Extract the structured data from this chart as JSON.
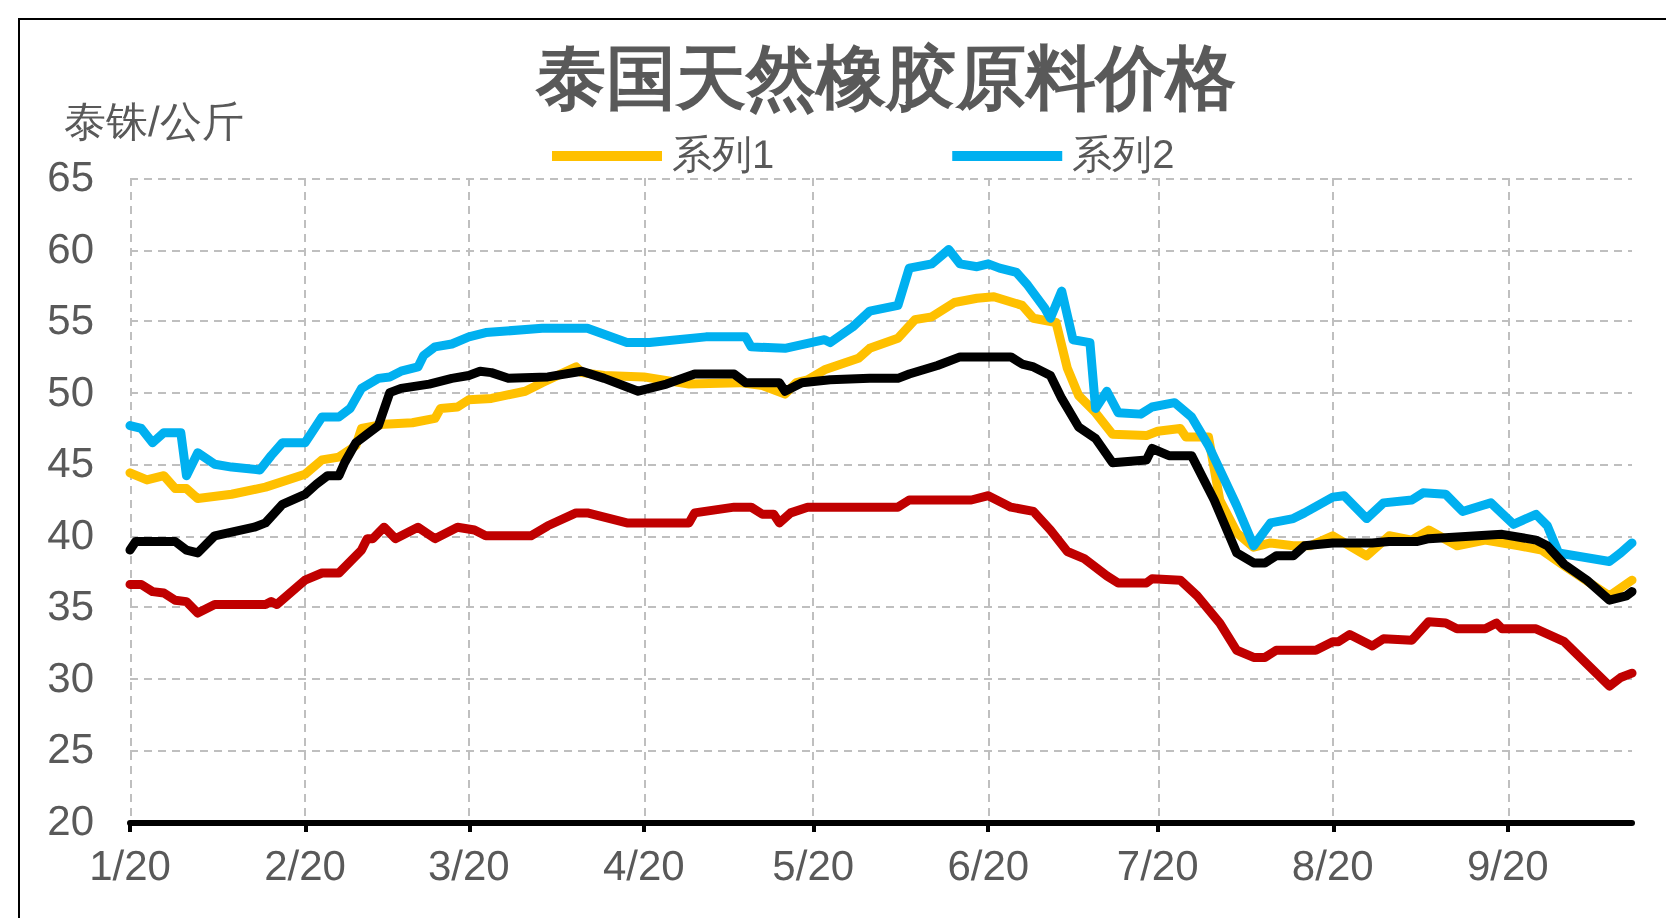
{
  "chart_data": {
    "type": "line",
    "title": "泰国天然橡胶原料价格",
    "ylabel": "泰铢/公斤",
    "xlim": [
      "2020-01-01",
      "2020-09-23"
    ],
    "xticks": [
      {
        "value": "2020-01-01",
        "label": "1/20"
      },
      {
        "value": "2020-02-01",
        "label": "2/20"
      },
      {
        "value": "2020-03-01",
        "label": "3/20"
      },
      {
        "value": "2020-04-01",
        "label": "4/20"
      },
      {
        "value": "2020-05-01",
        "label": "5/20"
      },
      {
        "value": "2020-06-01",
        "label": "6/20"
      },
      {
        "value": "2020-07-01",
        "label": "7/20"
      },
      {
        "value": "2020-08-01",
        "label": "8/20"
      },
      {
        "value": "2020-09-01",
        "label": "9/20"
      }
    ],
    "ylim": [
      20,
      65
    ],
    "yticks": [
      20,
      25,
      30,
      35,
      40,
      45,
      50,
      55,
      60,
      65
    ],
    "grid": true,
    "legend": "top",
    "marker": "none",
    "line_style": "solid",
    "series": [
      {
        "name": "系列1",
        "color": "#ffc000",
        "x": [
          "2020-01-01",
          "2020-01-04",
          "2020-01-07",
          "2020-01-09",
          "2020-01-11",
          "2020-01-13",
          "2020-01-19",
          "2020-01-25",
          "2020-02-01",
          "2020-02-04",
          "2020-02-07",
          "2020-02-10",
          "2020-02-11",
          "2020-02-15",
          "2020-02-20",
          "2020-02-24",
          "2020-02-25",
          "2020-02-28",
          "2020-03-01",
          "2020-03-05",
          "2020-03-11",
          "2020-03-14",
          "2020-03-20",
          "2020-03-21",
          "2020-03-25",
          "2020-04-01",
          "2020-04-09",
          "2020-04-18",
          "2020-04-22",
          "2020-04-26",
          "2020-04-28",
          "2020-04-30",
          "2020-05-03",
          "2020-05-09",
          "2020-05-11",
          "2020-05-16",
          "2020-05-19",
          "2020-05-22",
          "2020-05-26",
          "2020-05-30",
          "2020-06-02",
          "2020-06-07",
          "2020-06-09",
          "2020-06-13",
          "2020-06-15",
          "2020-06-17",
          "2020-06-20",
          "2020-06-23",
          "2020-06-29",
          "2020-07-01",
          "2020-07-05",
          "2020-07-06",
          "2020-07-10",
          "2020-07-12",
          "2020-07-15",
          "2020-07-18",
          "2020-07-21",
          "2020-07-25",
          "2020-07-28",
          "2020-08-01",
          "2020-08-07",
          "2020-08-11",
          "2020-08-15",
          "2020-08-18",
          "2020-08-23",
          "2020-08-28",
          "2020-09-03",
          "2020-09-07",
          "2020-09-11",
          "2020-09-19",
          "2020-09-23"
        ],
        "values": [
          44.4,
          43.9,
          44.2,
          43.3,
          43.3,
          42.6,
          42.9,
          43.4,
          44.3,
          45.3,
          45.5,
          46.3,
          47.5,
          47.8,
          47.9,
          48.2,
          48.9,
          49.0,
          49.5,
          49.6,
          50.1,
          50.7,
          51.8,
          51.4,
          51.2,
          51.1,
          50.6,
          50.7,
          50.5,
          49.9,
          50.7,
          50.9,
          51.6,
          52.4,
          53.1,
          53.8,
          55.1,
          55.3,
          56.3,
          56.6,
          56.7,
          56.1,
          55.2,
          54.9,
          51.7,
          49.8,
          48.6,
          47.1,
          47.0,
          47.3,
          47.5,
          46.9,
          46.9,
          42.5,
          40.2,
          39.2,
          39.5,
          39.3,
          39.3,
          40.0,
          38.6,
          40.0,
          39.7,
          40.4,
          39.3,
          39.7,
          39.3,
          39.0,
          37.9,
          35.8,
          36.9
        ]
      },
      {
        "name": "系列2",
        "color": "#00b0f0",
        "x": [
          "2020-01-01",
          "2020-01-03",
          "2020-01-05",
          "2020-01-07",
          "2020-01-10",
          "2020-01-11",
          "2020-01-13",
          "2020-01-16",
          "2020-01-19",
          "2020-01-24",
          "2020-01-26",
          "2020-01-28",
          "2020-02-01",
          "2020-02-02",
          "2020-02-04",
          "2020-02-07",
          "2020-02-09",
          "2020-02-11",
          "2020-02-14",
          "2020-02-16",
          "2020-02-18",
          "2020-02-21",
          "2020-02-22",
          "2020-02-24",
          "2020-02-27",
          "2020-03-01",
          "2020-03-04",
          "2020-03-14",
          "2020-03-22",
          "2020-03-29",
          "2020-04-02",
          "2020-04-12",
          "2020-04-19",
          "2020-04-20",
          "2020-04-26",
          "2020-05-03",
          "2020-05-04",
          "2020-05-08",
          "2020-05-11",
          "2020-05-16",
          "2020-05-18",
          "2020-05-22",
          "2020-05-25",
          "2020-05-27",
          "2020-05-30",
          "2020-06-01",
          "2020-06-03",
          "2020-06-06",
          "2020-06-08",
          "2020-06-11",
          "2020-06-12",
          "2020-06-14",
          "2020-06-16",
          "2020-06-19",
          "2020-06-20",
          "2020-06-22",
          "2020-06-24",
          "2020-06-28",
          "2020-06-30",
          "2020-07-04",
          "2020-07-07",
          "2020-07-10",
          "2020-07-15",
          "2020-07-18",
          "2020-07-21",
          "2020-07-25",
          "2020-07-27",
          "2020-08-01",
          "2020-08-03",
          "2020-08-07",
          "2020-08-10",
          "2020-08-15",
          "2020-08-17",
          "2020-08-21",
          "2020-08-24",
          "2020-08-29",
          "2020-09-02",
          "2020-09-06",
          "2020-09-08",
          "2020-09-10",
          "2020-09-19",
          "2020-09-21",
          "2020-09-23"
        ],
        "values": [
          47.7,
          47.5,
          46.5,
          47.2,
          47.2,
          44.2,
          45.8,
          45.0,
          44.8,
          44.6,
          45.6,
          46.5,
          46.5,
          47.1,
          48.3,
          48.3,
          48.9,
          50.3,
          51.0,
          51.1,
          51.5,
          51.8,
          52.6,
          53.2,
          53.4,
          53.9,
          54.2,
          54.5,
          54.5,
          53.5,
          53.5,
          53.9,
          53.9,
          53.2,
          53.1,
          53.7,
          53.5,
          54.6,
          55.7,
          56.1,
          58.7,
          59.0,
          60.0,
          59.0,
          58.8,
          59.0,
          58.7,
          58.4,
          57.5,
          55.9,
          55.2,
          57.1,
          53.7,
          53.5,
          48.9,
          50.1,
          48.6,
          48.5,
          49.0,
          49.3,
          48.3,
          46.3,
          42.1,
          39.3,
          40.9,
          41.2,
          41.6,
          42.7,
          42.8,
          41.2,
          42.3,
          42.5,
          43.0,
          42.9,
          41.7,
          42.3,
          40.8,
          41.5,
          40.7,
          38.8,
          38.2,
          38.8,
          39.5
        ]
      },
      {
        "color": "#c00000",
        "x": [
          "2020-01-01",
          "2020-01-03",
          "2020-01-05",
          "2020-01-07",
          "2020-01-09",
          "2020-01-11",
          "2020-01-13",
          "2020-01-16",
          "2020-01-25",
          "2020-01-26",
          "2020-01-27",
          "2020-02-01",
          "2020-02-04",
          "2020-02-07",
          "2020-02-11",
          "2020-02-12",
          "2020-02-13",
          "2020-02-15",
          "2020-02-17",
          "2020-02-21",
          "2020-02-24",
          "2020-02-28",
          "2020-03-02",
          "2020-03-04",
          "2020-03-12",
          "2020-03-15",
          "2020-03-20",
          "2020-03-22",
          "2020-03-29",
          "2020-04-09",
          "2020-04-10",
          "2020-04-17",
          "2020-04-20",
          "2020-04-22",
          "2020-04-24",
          "2020-04-25",
          "2020-04-27",
          "2020-04-30",
          "2020-05-16",
          "2020-05-18",
          "2020-05-29",
          "2020-06-01",
          "2020-06-05",
          "2020-06-09",
          "2020-06-12",
          "2020-06-15",
          "2020-06-18",
          "2020-06-22",
          "2020-06-24",
          "2020-06-29",
          "2020-06-30",
          "2020-07-05",
          "2020-07-08",
          "2020-07-12",
          "2020-07-15",
          "2020-07-18",
          "2020-07-20",
          "2020-07-22",
          "2020-07-29",
          "2020-08-01",
          "2020-08-02",
          "2020-08-04",
          "2020-08-08",
          "2020-08-10",
          "2020-08-15",
          "2020-08-18",
          "2020-08-21",
          "2020-08-23",
          "2020-08-28",
          "2020-08-30",
          "2020-08-31",
          "2020-09-06",
          "2020-09-11",
          "2020-09-19",
          "2020-09-21",
          "2020-09-23"
        ],
        "values": [
          36.6,
          36.6,
          36.1,
          36.0,
          35.5,
          35.4,
          34.6,
          35.2,
          35.2,
          35.4,
          35.2,
          36.9,
          37.4,
          37.4,
          39.0,
          39.8,
          39.8,
          40.6,
          39.8,
          40.6,
          39.8,
          40.6,
          40.4,
          40.0,
          40.0,
          40.7,
          41.6,
          41.6,
          40.9,
          40.9,
          41.6,
          42.0,
          42.0,
          41.5,
          41.5,
          40.9,
          41.6,
          42.0,
          42.0,
          42.5,
          42.5,
          42.8,
          42.0,
          41.7,
          40.4,
          38.9,
          38.4,
          37.2,
          36.7,
          36.7,
          37.0,
          36.9,
          35.8,
          33.9,
          32.0,
          31.5,
          31.5,
          32.0,
          32.0,
          32.6,
          32.6,
          33.1,
          32.3,
          32.8,
          32.7,
          34.0,
          33.9,
          33.5,
          33.5,
          33.9,
          33.5,
          33.5,
          32.6,
          29.5,
          30.1,
          30.4
        ]
      },
      {
        "color": "#000000",
        "x": [
          "2020-01-01",
          "2020-01-02",
          "2020-01-09",
          "2020-01-11",
          "2020-01-13",
          "2020-01-16",
          "2020-01-23",
          "2020-01-25",
          "2020-01-28",
          "2020-02-01",
          "2020-02-03",
          "2020-02-05",
          "2020-02-07",
          "2020-02-08",
          "2020-02-10",
          "2020-02-12",
          "2020-02-14",
          "2020-02-16",
          "2020-02-18",
          "2020-02-23",
          "2020-02-27",
          "2020-03-01",
          "2020-03-03",
          "2020-03-05",
          "2020-03-08",
          "2020-03-15",
          "2020-03-21",
          "2020-03-25",
          "2020-03-31",
          "2020-04-05",
          "2020-04-10",
          "2020-04-17",
          "2020-04-19",
          "2020-04-25",
          "2020-04-26",
          "2020-04-29",
          "2020-05-04",
          "2020-05-11",
          "2020-05-16",
          "2020-05-18",
          "2020-05-23",
          "2020-05-27",
          "2020-06-05",
          "2020-06-07",
          "2020-06-09",
          "2020-06-12",
          "2020-06-14",
          "2020-06-17",
          "2020-06-20",
          "2020-06-23",
          "2020-06-29",
          "2020-06-30",
          "2020-07-03",
          "2020-07-07",
          "2020-07-11",
          "2020-07-15",
          "2020-07-18",
          "2020-07-20",
          "2020-07-22",
          "2020-07-25",
          "2020-07-27",
          "2020-08-01",
          "2020-08-08",
          "2020-08-11",
          "2020-08-16",
          "2020-08-18",
          "2020-08-31",
          "2020-09-06",
          "2020-09-08",
          "2020-09-11",
          "2020-09-15",
          "2020-09-19",
          "2020-09-22",
          "2020-09-23"
        ],
        "values": [
          39.0,
          39.6,
          39.6,
          39.0,
          38.8,
          40.0,
          40.6,
          40.9,
          42.2,
          42.9,
          43.6,
          44.2,
          44.2,
          45.1,
          46.5,
          47.1,
          47.7,
          50.0,
          50.3,
          50.6,
          51.0,
          51.2,
          51.5,
          51.4,
          51.0,
          51.1,
          51.5,
          51.0,
          50.1,
          50.6,
          51.3,
          51.3,
          50.7,
          50.7,
          50.1,
          50.7,
          50.9,
          51.0,
          51.0,
          51.3,
          51.9,
          52.5,
          52.5,
          52.0,
          51.8,
          51.2,
          49.6,
          47.6,
          46.8,
          45.1,
          45.3,
          46.1,
          45.6,
          45.6,
          42.5,
          38.8,
          38.1,
          38.1,
          38.6,
          38.6,
          39.3,
          39.5,
          39.5,
          39.6,
          39.6,
          39.8,
          40.1,
          39.7,
          39.3,
          38.0,
          36.9,
          35.5,
          35.8,
          36.1
        ]
      }
    ]
  }
}
